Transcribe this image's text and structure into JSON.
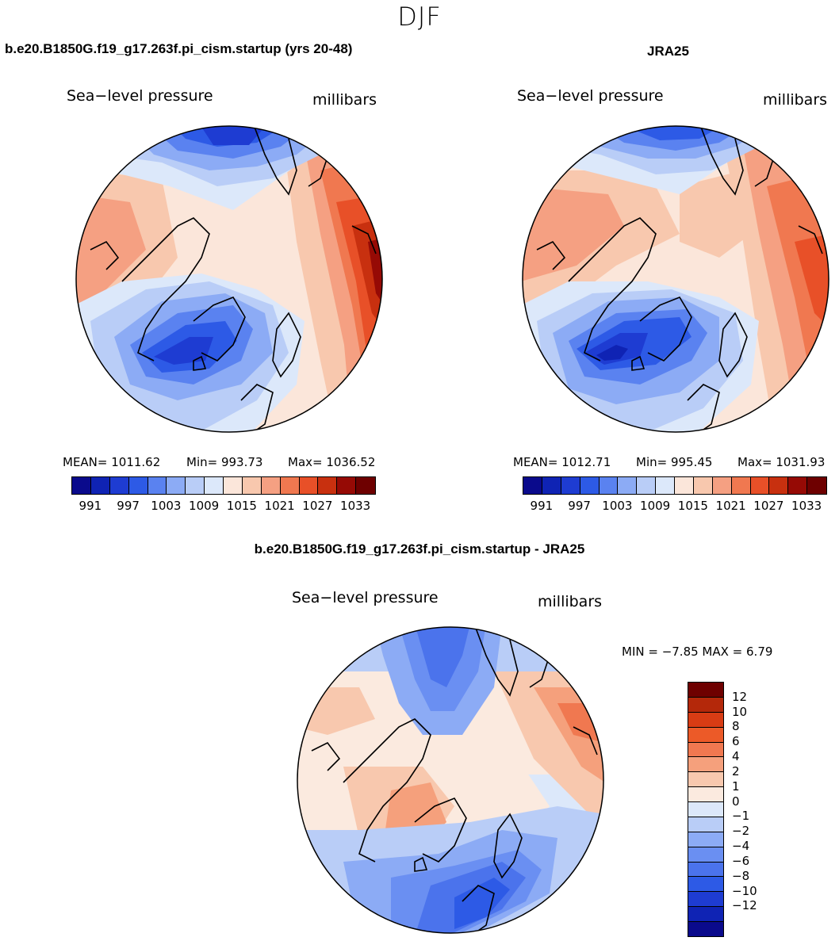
{
  "figure": {
    "season": "DJF",
    "panels": [
      {
        "title": "b.e20.B1850G.f19_g17.263f.pi_cism.startup (yrs 20-48)",
        "variable": "Sea−level pressure",
        "units": "millibars",
        "stats": {
          "mean": "MEAN= 1011.62",
          "min": "Min= 993.73",
          "max": "Max= 1036.52"
        }
      },
      {
        "title": "JRA25",
        "variable": "Sea−level pressure",
        "units": "millibars",
        "stats": {
          "mean": "MEAN= 1012.71",
          "min": "Min= 995.45",
          "max": "Max= 1031.93"
        }
      },
      {
        "title": "b.e20.B1850G.f19_g17.263f.pi_cism.startup - JRA25",
        "variable": "Sea−level pressure",
        "units": "millibars",
        "stats": {
          "minmax": "MIN =   −7.85 MAX =    6.79"
        }
      }
    ],
    "abs_colorbar": {
      "colors": [
        "#0a0a8c",
        "#0f23b4",
        "#1e3cd2",
        "#2d5ae6",
        "#5a82f0",
        "#8cabf5",
        "#b9cdf7",
        "#dce8fa",
        "#fbe6da",
        "#f8c8ae",
        "#f5a082",
        "#f07850",
        "#e85028",
        "#c8300f",
        "#960a05",
        "#6e0000"
      ],
      "ticks": [
        "991",
        "997",
        "1003",
        "1009",
        "1015",
        "1021",
        "1027",
        "1033"
      ]
    },
    "diff_colorbar": {
      "colors": [
        "#6e0000",
        "#b4280a",
        "#d83c14",
        "#ec5a28",
        "#f07850",
        "#f5a07c",
        "#f8c8ae",
        "#fbeadf",
        "#dce8fa",
        "#b9cdf7",
        "#8cabf5",
        "#6a8ff2",
        "#4b73ec",
        "#2d5ae6",
        "#1e3cd2",
        "#0f23b4",
        "#0a0a8c"
      ],
      "ticks": [
        "12",
        "10",
        "8",
        "6",
        "4",
        "2",
        "1",
        "0",
        "−1",
        "−2",
        "−4",
        "−6",
        "−8",
        "−10",
        "−12"
      ]
    }
  }
}
